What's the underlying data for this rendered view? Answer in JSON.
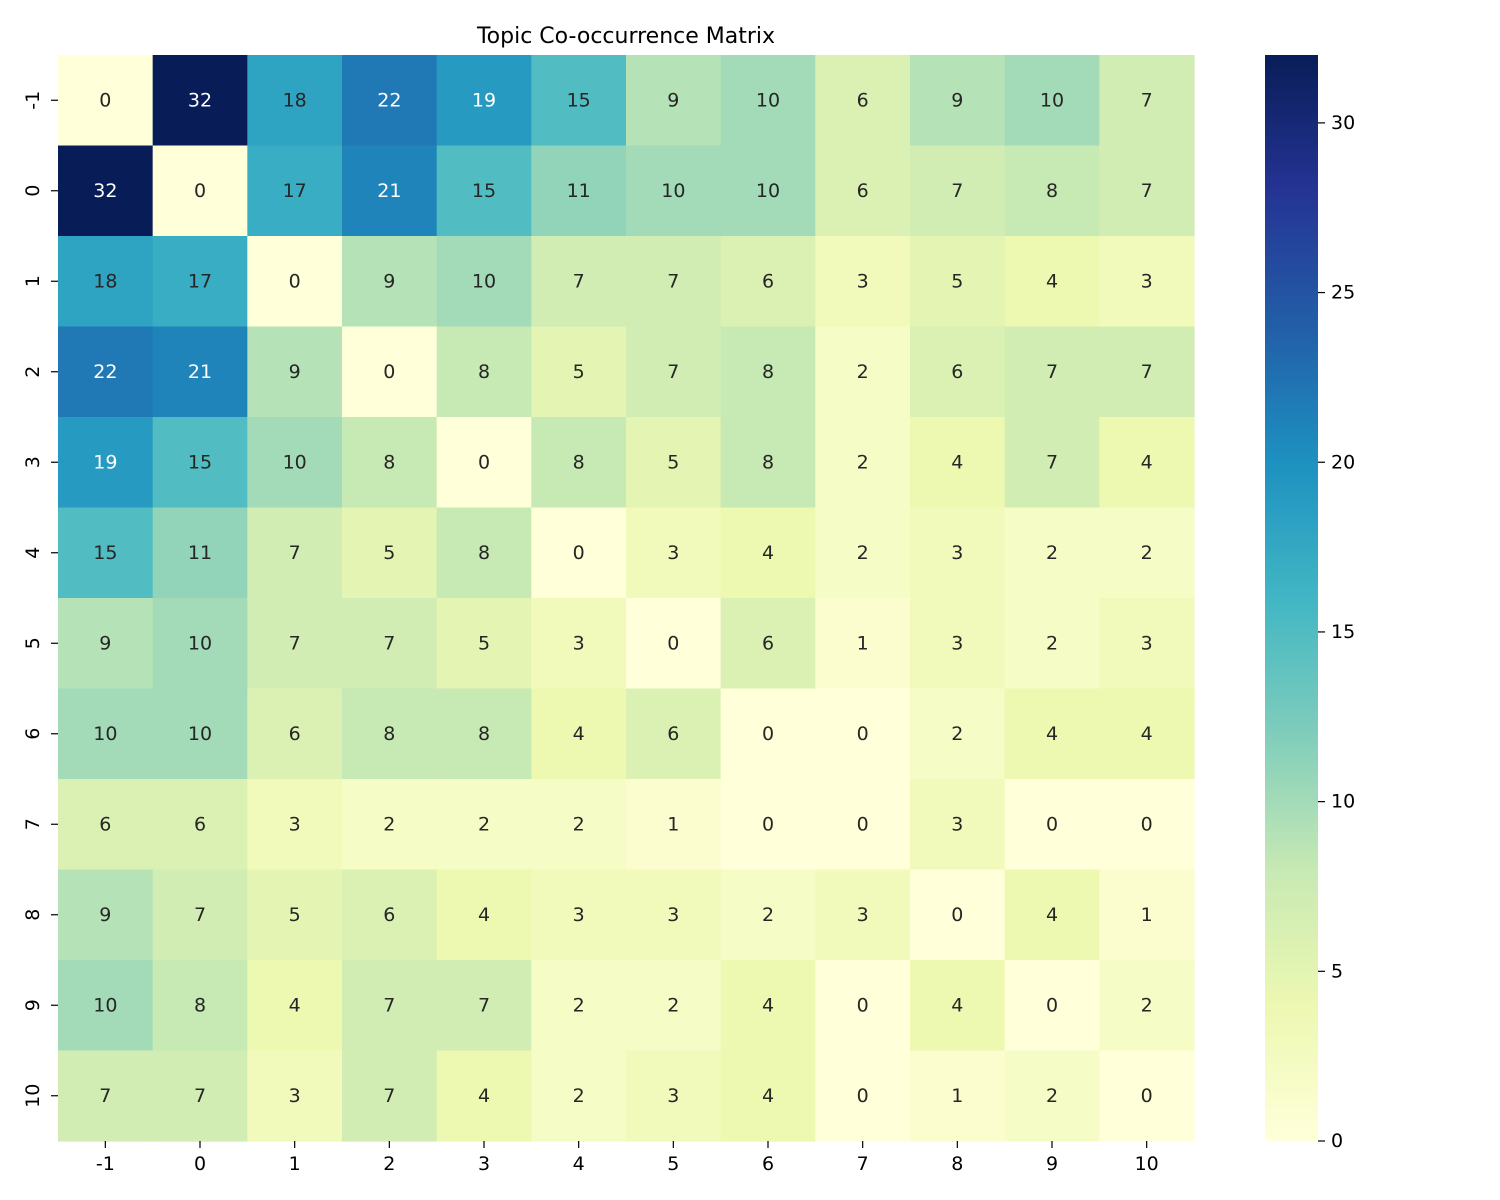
{
  "chart_data": {
    "type": "heatmap",
    "title": "Topic Co-occurrence Matrix",
    "xlabel": "",
    "ylabel": "",
    "x_categories": [
      "-1",
      "0",
      "1",
      "2",
      "3",
      "4",
      "5",
      "6",
      "7",
      "8",
      "9",
      "10"
    ],
    "y_categories": [
      "-1",
      "0",
      "1",
      "2",
      "3",
      "4",
      "5",
      "6",
      "7",
      "8",
      "9",
      "10"
    ],
    "values": [
      [
        0,
        32,
        18,
        22,
        19,
        15,
        9,
        10,
        6,
        9,
        10,
        7
      ],
      [
        32,
        0,
        17,
        21,
        15,
        11,
        10,
        10,
        6,
        7,
        8,
        7
      ],
      [
        18,
        17,
        0,
        9,
        10,
        7,
        7,
        6,
        3,
        5,
        4,
        3
      ],
      [
        22,
        21,
        9,
        0,
        8,
        5,
        7,
        8,
        2,
        6,
        7,
        7
      ],
      [
        19,
        15,
        10,
        8,
        0,
        8,
        5,
        8,
        2,
        4,
        7,
        4
      ],
      [
        15,
        11,
        7,
        5,
        8,
        0,
        3,
        4,
        2,
        3,
        2,
        2
      ],
      [
        9,
        10,
        7,
        7,
        5,
        3,
        0,
        6,
        1,
        3,
        2,
        3
      ],
      [
        10,
        10,
        6,
        8,
        8,
        4,
        6,
        0,
        0,
        2,
        4,
        4
      ],
      [
        6,
        6,
        3,
        2,
        2,
        2,
        1,
        0,
        0,
        3,
        0,
        0
      ],
      [
        9,
        7,
        5,
        6,
        4,
        3,
        3,
        2,
        3,
        0,
        4,
        1
      ],
      [
        10,
        8,
        4,
        7,
        7,
        2,
        2,
        4,
        0,
        4,
        0,
        2
      ],
      [
        7,
        7,
        3,
        7,
        4,
        2,
        3,
        4,
        0,
        1,
        2,
        0
      ]
    ],
    "colormap": "YlGnBu",
    "value_range": [
      0,
      32
    ],
    "colorbar_ticks": [
      0,
      5,
      10,
      15,
      20,
      25,
      30
    ],
    "annotated": true,
    "grid": false,
    "legend": "colorbar-right"
  }
}
